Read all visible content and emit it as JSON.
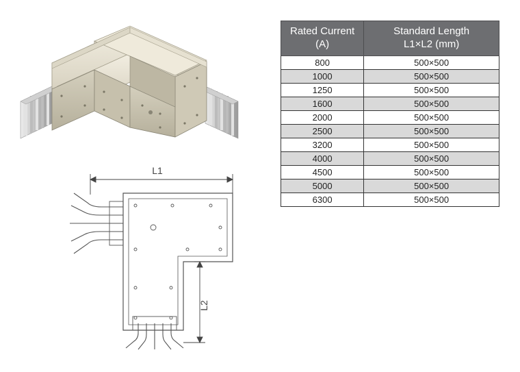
{
  "table": {
    "columns": [
      "Rated Current\n(A)",
      "Standard Length\nL1×L2 (mm)"
    ],
    "rows": [
      {
        "current": "800",
        "length": "500×500",
        "alt": false
      },
      {
        "current": "1000",
        "length": "500×500",
        "alt": true
      },
      {
        "current": "1250",
        "length": "500×500",
        "alt": false
      },
      {
        "current": "1600",
        "length": "500×500",
        "alt": true
      },
      {
        "current": "2000",
        "length": "500×500",
        "alt": false
      },
      {
        "current": "2500",
        "length": "500×500",
        "alt": true
      },
      {
        "current": "3200",
        "length": "500×500",
        "alt": false
      },
      {
        "current": "4000",
        "length": "500×500",
        "alt": true
      },
      {
        "current": "4500",
        "length": "500×500",
        "alt": false
      },
      {
        "current": "5000",
        "length": "500×500",
        "alt": true
      },
      {
        "current": "6300",
        "length": "500×500",
        "alt": false
      }
    ],
    "header_bg": "#6d6e71",
    "header_color": "#ffffff",
    "border_color": "#333333",
    "alt_row_bg": "#d9d9d9",
    "font_size_header": 15,
    "font_size_cell": 13
  },
  "schematic": {
    "label_L1": "L1",
    "label_L2": "L2",
    "stroke": "#555555",
    "stroke_width": 1.2,
    "dim_stroke": "#444444",
    "text_color": "#444444",
    "font_size": 14
  },
  "render3d": {
    "body_fill": "#eae5d6",
    "body_shadow": "#c9c3b0",
    "fin_fill": "#c8c8c8",
    "fin_light": "#e8e8e8",
    "fin_dark": "#9a9a9a",
    "edge": "#8a8676"
  }
}
